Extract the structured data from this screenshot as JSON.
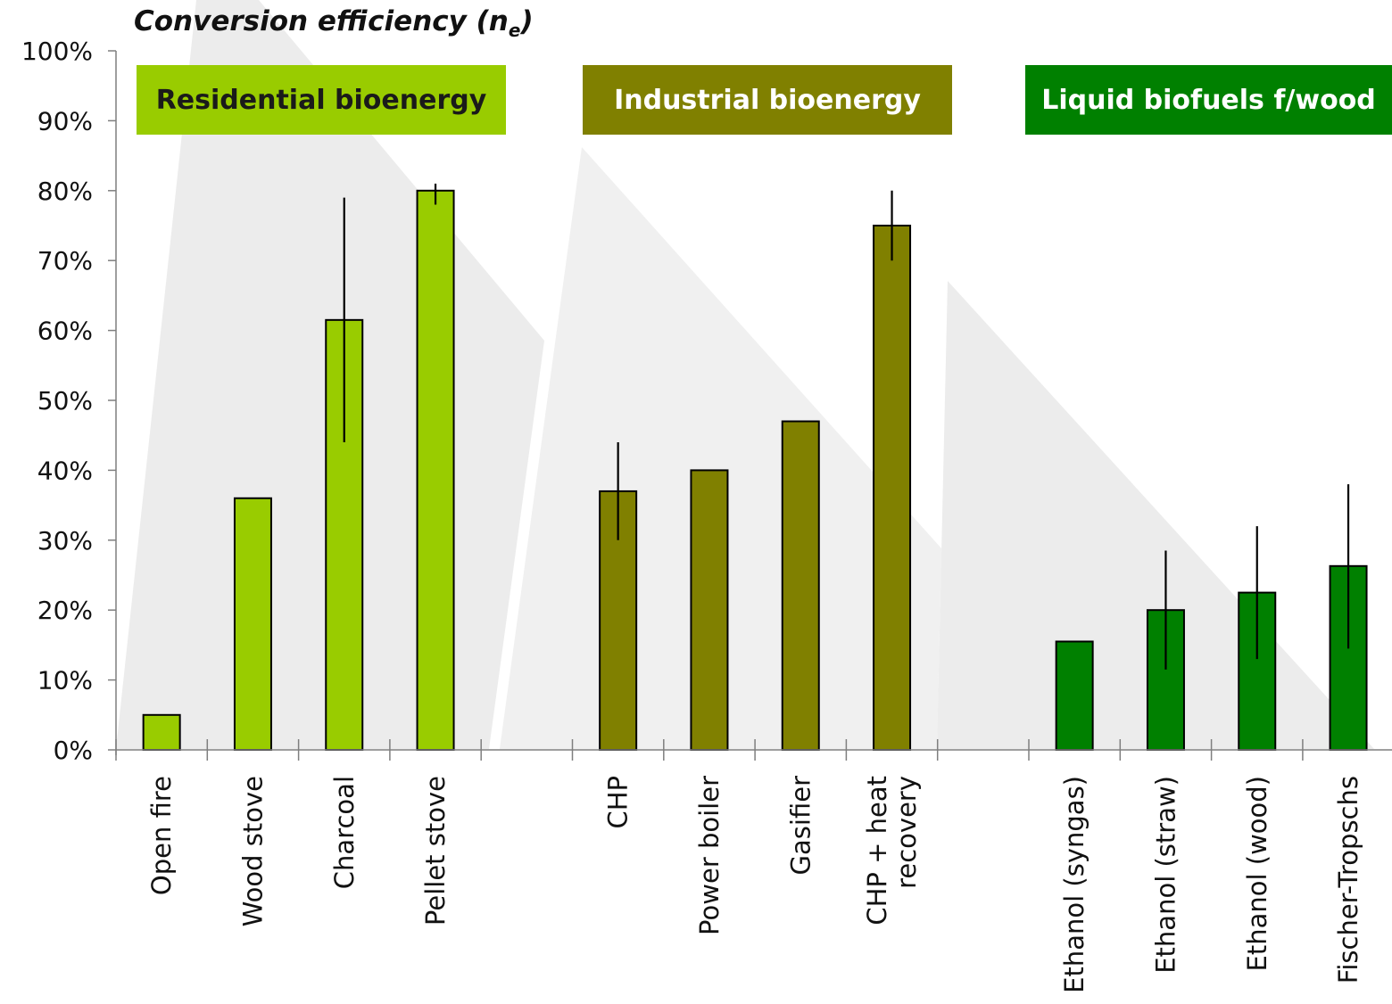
{
  "chart_data": {
    "type": "bar",
    "ytitle_main": "Conversion efficiency (n",
    "ytitle_sub": "e",
    "ytitle_close": ")",
    "ylim": [
      0,
      100
    ],
    "yticks": [
      "0%",
      "10%",
      "20%",
      "30%",
      "40%",
      "50%",
      "60%",
      "70%",
      "80%",
      "90%",
      "100%"
    ],
    "grid": false,
    "groups": [
      {
        "label": "Residential bioenergy",
        "color": "#99cc00"
      },
      {
        "label": "Industrial bioenergy",
        "color": "#808000"
      },
      {
        "label": "Liquid biofuels f/wood",
        "color": "#008000"
      }
    ],
    "bars": [
      {
        "label": [
          "Open fire"
        ],
        "value": 5,
        "group": 0,
        "err": null
      },
      {
        "label": [
          "Wood stove"
        ],
        "value": 36,
        "group": 0,
        "err": null
      },
      {
        "label": [
          "Charcoal"
        ],
        "value": 61.5,
        "group": 0,
        "err": [
          44,
          79
        ]
      },
      {
        "label": [
          "Pellet stove"
        ],
        "value": 80,
        "group": 0,
        "err": [
          78,
          81
        ]
      },
      {
        "label": [
          ""
        ],
        "value": null,
        "group": null,
        "err": null
      },
      {
        "label": [
          "CHP"
        ],
        "value": 37,
        "group": 1,
        "err": [
          30,
          44
        ]
      },
      {
        "label": [
          "Power boiler"
        ],
        "value": 40,
        "group": 1,
        "err": null
      },
      {
        "label": [
          "Gasifier"
        ],
        "value": 47,
        "group": 1,
        "err": null
      },
      {
        "label": [
          "CHP + heat",
          "recovery"
        ],
        "value": 75,
        "group": 1,
        "err": [
          70,
          80
        ]
      },
      {
        "label": [
          ""
        ],
        "value": null,
        "group": null,
        "err": null
      },
      {
        "label": [
          "Ethanol (syngas)"
        ],
        "value": 15.5,
        "group": 2,
        "err": null
      },
      {
        "label": [
          "Ethanol (straw)"
        ],
        "value": 20,
        "group": 2,
        "err": [
          11.5,
          28.5
        ]
      },
      {
        "label": [
          "Ethanol (wood)"
        ],
        "value": 22.5,
        "group": 2,
        "err": [
          13,
          32
        ]
      },
      {
        "label": [
          "Fischer-Tropschs"
        ],
        "value": 26.3,
        "group": 2,
        "err": [
          14.5,
          38
        ]
      }
    ]
  }
}
